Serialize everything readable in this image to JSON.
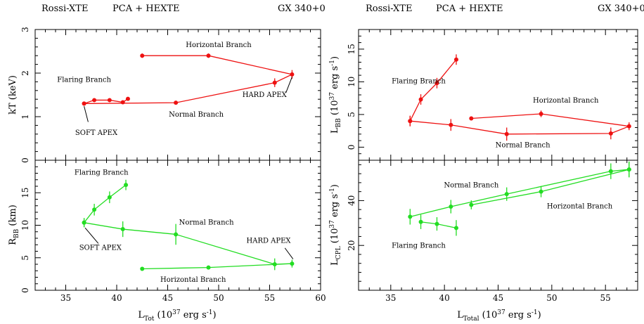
{
  "header": {
    "left": {
      "mission": "Rossi-XTE",
      "instruments": "PCA + HEXTE",
      "source": "GX 340+0"
    },
    "right": {
      "mission": "Rossi-XTE",
      "instruments": "PCA + HEXTE",
      "source": "GX 340+0"
    }
  },
  "colors": {
    "red": "#ee1111",
    "green": "#22dd22",
    "axes": "#000000"
  },
  "chart_data": [
    {
      "id": "kT",
      "type": "scatter",
      "xlabel": "L_Tot (10^37 erg s^-1)",
      "ylabel": "kT (keV)",
      "ylim": [
        0,
        3
      ],
      "xlim": [
        32,
        60
      ],
      "color": "red",
      "yticks": [
        "0",
        "1",
        "2",
        "3"
      ],
      "series": [
        {
          "x": [
            36.8,
            37.8,
            39.3,
            40.6,
            41.1
          ],
          "y": [
            1.3,
            1.38,
            1.38,
            1.33,
            1.41
          ],
          "yerr": [
            0.03,
            0.03,
            0.03,
            0.03,
            0.03
          ]
        },
        {
          "x": [
            36.8,
            45.8,
            55.5,
            57.2,
            49.0,
            42.5
          ],
          "y": [
            1.3,
            1.32,
            1.78,
            1.97,
            2.4,
            2.4
          ],
          "yerr": [
            0.03,
            0.04,
            0.1,
            0.1,
            0.05,
            0.05
          ]
        }
      ],
      "annotations": [
        {
          "text": "Horizontal Branch",
          "x": 50.0,
          "y": 2.6
        },
        {
          "text": "Flaring Branch",
          "x": 36.8,
          "y": 1.8
        },
        {
          "text": "HARD APEX",
          "x": 54.5,
          "y": 1.45
        },
        {
          "text": "Normal Branch",
          "x": 47.8,
          "y": 1.0
        },
        {
          "text": "SOFT APEX",
          "x": 38.0,
          "y": 0.58
        }
      ],
      "leaders": [
        {
          "from": [
            37.2,
            0.88
          ],
          "to": [
            36.8,
            1.24
          ]
        },
        {
          "from": [
            56.6,
            1.55
          ],
          "to": [
            57.2,
            1.91
          ]
        }
      ]
    },
    {
      "id": "RBB",
      "type": "scatter",
      "xlabel": "L_Tot (10^37 erg s^-1)",
      "ylabel": "R_BB (km)",
      "ylim": [
        0,
        20
      ],
      "xlim": [
        32,
        60
      ],
      "color": "green",
      "xticks": [
        "35",
        "40",
        "45",
        "50",
        "55",
        "60"
      ],
      "yticks": [
        "0",
        "5",
        "10",
        "15"
      ],
      "series": [
        {
          "x": [
            36.8,
            37.8,
            39.3,
            40.9
          ],
          "y": [
            10.4,
            12.4,
            14.3,
            16.2
          ],
          "yerr": [
            0.7,
            0.9,
            0.9,
            0.8
          ]
        },
        {
          "x": [
            36.8,
            40.6,
            45.8,
            55.5,
            57.2,
            49.0,
            42.5
          ],
          "y": [
            10.4,
            9.4,
            8.6,
            4.0,
            4.1,
            3.5,
            3.3
          ],
          "yerr": [
            0.7,
            1.2,
            1.6,
            0.9,
            0.6,
            0.3,
            0.3
          ]
        }
      ],
      "annotations": [
        {
          "text": "Flaring Branch",
          "x": 38.5,
          "y": 17.8
        },
        {
          "text": "Normal Branch",
          "x": 48.8,
          "y": 10.1
        },
        {
          "text": "SOFT APEX",
          "x": 38.4,
          "y": 6.2
        },
        {
          "text": "HARD APEX",
          "x": 54.9,
          "y": 7.3
        },
        {
          "text": "Horizontal Branch",
          "x": 47.5,
          "y": 1.3
        }
      ],
      "leaders": [
        {
          "from": [
            36.9,
            9.6
          ],
          "to": [
            38.2,
            7.2
          ]
        },
        {
          "from": [
            56.5,
            6.5
          ],
          "to": [
            57.3,
            4.8
          ]
        }
      ]
    },
    {
      "id": "LBB",
      "type": "scatter",
      "xlabel": "L_Total (10^37 erg s^-1)",
      "ylabel": "L_BB (10^37 erg s^-1)",
      "ylim": [
        -2,
        18
      ],
      "xlim": [
        32,
        58
      ],
      "color": "red",
      "yticks": [
        "0",
        "5",
        "10",
        "15"
      ],
      "series": [
        {
          "x": [
            36.8,
            37.8,
            39.3,
            41.1
          ],
          "y": [
            4.0,
            7.3,
            9.8,
            13.4
          ],
          "yerr": [
            0.8,
            0.8,
            0.8,
            0.8
          ]
        },
        {
          "x": [
            36.8,
            40.6,
            45.8,
            55.5,
            57.2,
            49.0,
            42.5
          ],
          "y": [
            4.0,
            3.4,
            2.0,
            2.1,
            3.2,
            5.1,
            4.4
          ],
          "yerr": [
            0.8,
            0.9,
            1.0,
            0.9,
            0.6,
            0.5,
            0.3
          ]
        }
      ],
      "annotations": [
        {
          "text": "Flaring Branch",
          "x": 37.6,
          "y": 9.8
        },
        {
          "text": "Horizontal Branch",
          "x": 51.3,
          "y": 6.8
        },
        {
          "text": "Normal Branch",
          "x": 47.3,
          "y": 0.0
        }
      ]
    },
    {
      "id": "LCPL",
      "type": "scatter",
      "xlabel": "L_Total (10^37 erg s^-1)",
      "ylabel": "L_CPL (10^37 erg s^-1)",
      "ylim": [
        0,
        58
      ],
      "xlim": [
        32,
        58
      ],
      "color": "green",
      "xticks": [
        "35",
        "40",
        "45",
        "50",
        "55"
      ],
      "yticks": [
        "20",
        "40"
      ],
      "series": [
        {
          "x": [
            36.8,
            40.6,
            45.8,
            55.5,
            57.2
          ],
          "y": [
            32.8,
            37.3,
            42.9,
            53.1,
            53.9
          ],
          "yerr": [
            3.5,
            3.0,
            3.0,
            3.5,
            3.5
          ]
        },
        {
          "x": [
            37.8,
            39.3,
            41.1
          ],
          "y": [
            30.5,
            29.6,
            27.8
          ],
          "yerr": [
            3.2,
            3.0,
            3.5
          ]
        },
        {
          "x": [
            42.5,
            49.0,
            57.2
          ],
          "y": [
            38.1,
            44.0,
            53.9
          ],
          "yerr": [
            2.0,
            2.5,
            3.5
          ]
        }
      ],
      "annotations": [
        {
          "text": "Normal Branch",
          "x": 42.5,
          "y": 46.0
        },
        {
          "text": "Horizontal Branch",
          "x": 52.6,
          "y": 36.5
        },
        {
          "text": "Flaring Branch",
          "x": 37.6,
          "y": 19.0
        }
      ]
    }
  ]
}
